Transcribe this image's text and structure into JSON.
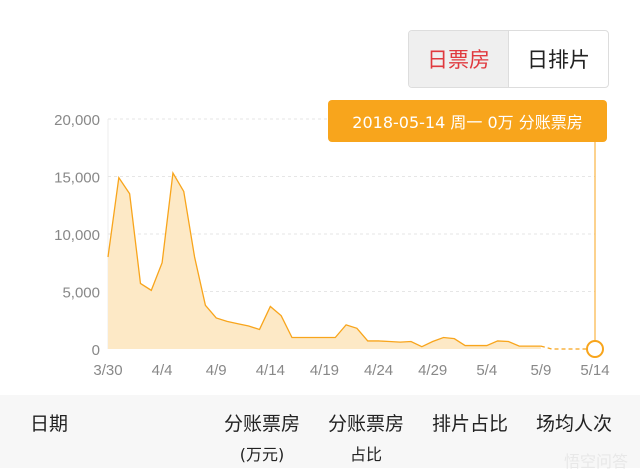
{
  "toggle": {
    "items": [
      {
        "label": "日票房",
        "active": true
      },
      {
        "label": "日排片",
        "active": false
      }
    ]
  },
  "tooltip": {
    "text": "2018-05-14 周一 0万 分账票房"
  },
  "colors": {
    "accent": "#f8a51c",
    "active_tab": "#e0393e",
    "fill": "#fde9c6"
  },
  "chart_data": {
    "type": "area",
    "x": [
      "3/30",
      "3/31",
      "4/1",
      "4/2",
      "4/3",
      "4/4",
      "4/5",
      "4/6",
      "4/7",
      "4/8",
      "4/9",
      "4/10",
      "4/11",
      "4/12",
      "4/13",
      "4/14",
      "4/15",
      "4/16",
      "4/17",
      "4/18",
      "4/19",
      "4/20",
      "4/21",
      "4/22",
      "4/23",
      "4/24",
      "4/25",
      "4/26",
      "4/27",
      "4/28",
      "4/29",
      "4/30",
      "5/1",
      "5/2",
      "5/3",
      "5/4",
      "5/5",
      "5/6",
      "5/7",
      "5/8",
      "5/9",
      "5/10",
      "5/11",
      "5/12",
      "5/13",
      "5/14"
    ],
    "values": [
      8000,
      14900,
      13500,
      5700,
      5100,
      7500,
      15300,
      13700,
      8000,
      3800,
      2700,
      2400,
      2200,
      2000,
      1700,
      3700,
      2900,
      1000,
      1000,
      1000,
      1000,
      1000,
      2100,
      1800,
      700,
      700,
      650,
      600,
      650,
      200,
      650,
      1000,
      900,
      300,
      300,
      300,
      700,
      650,
      250,
      250,
      250,
      0,
      0,
      0,
      0,
      0
    ],
    "dashed_from": "5/9",
    "highlight": "5/14",
    "xticks": [
      "3/30",
      "4/4",
      "4/9",
      "4/14",
      "4/19",
      "4/24",
      "4/29",
      "5/4",
      "5/9",
      "5/14"
    ],
    "yticks": [
      "0",
      "5,000",
      "10,000",
      "15,000",
      "20,000"
    ],
    "ylim": [
      0,
      20000
    ],
    "grid": true
  },
  "table_header": {
    "date": "日期",
    "box_office": "分账票房",
    "box_office_unit": "(万元)",
    "box_office_share": "分账票房",
    "box_office_share_sub": "占比",
    "screening_share": "排片占比",
    "avg_attendance": "场均人次"
  },
  "watermark": "悟空问答"
}
